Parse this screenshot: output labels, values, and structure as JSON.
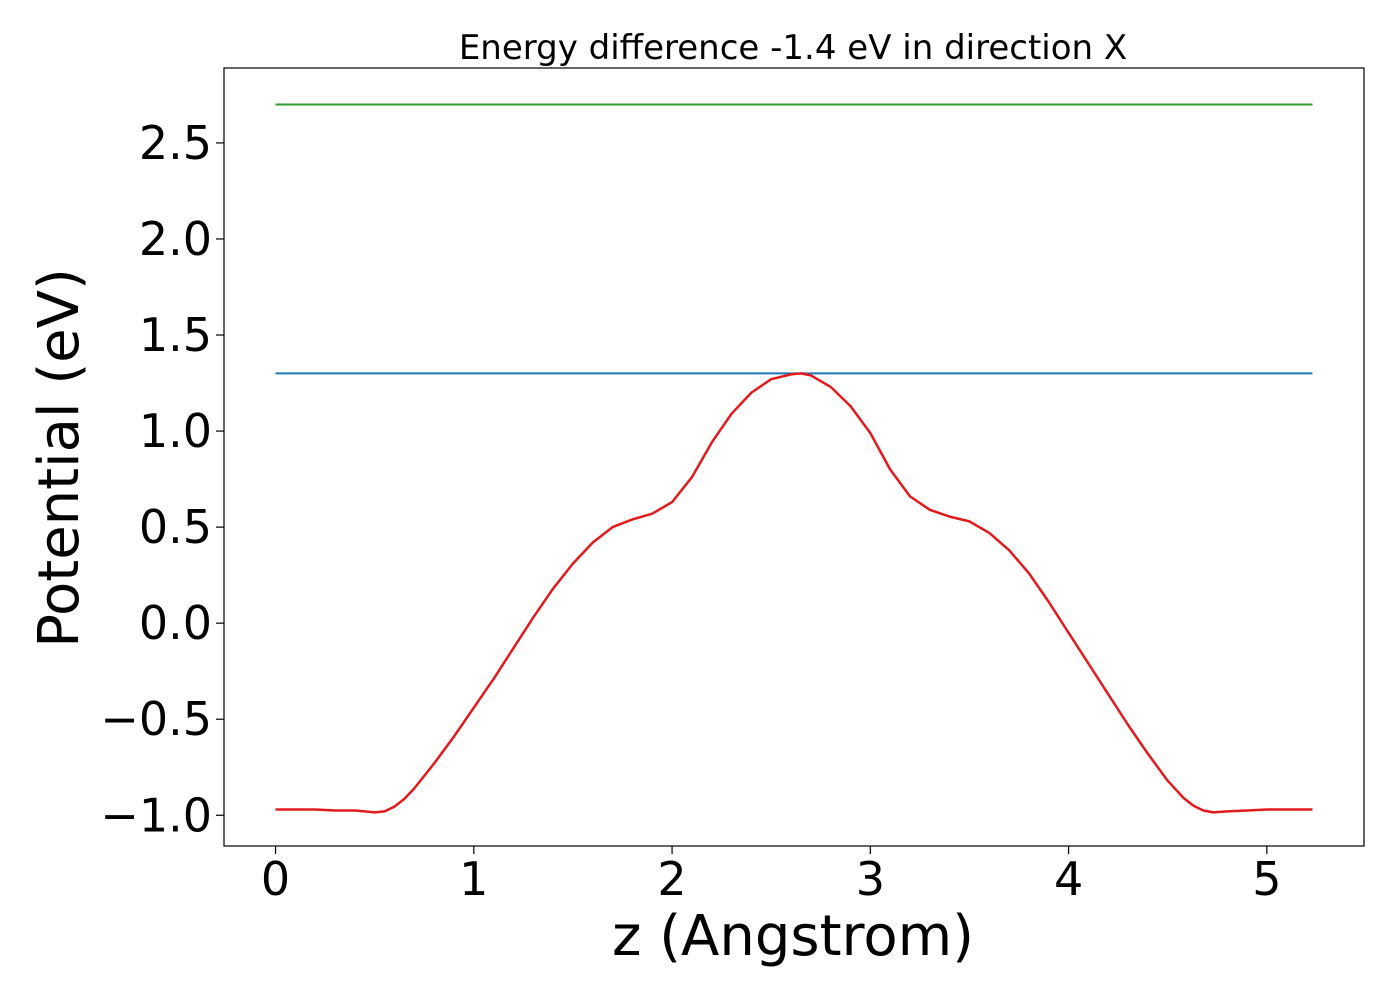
{
  "chart_data": {
    "type": "line",
    "title": "Energy difference -1.4 eV in direction X",
    "xlabel": "z (Angstrom)",
    "ylabel": "Potential (eV)",
    "xlim": [
      -0.26,
      5.49
    ],
    "ylim": [
      -1.16,
      2.89
    ],
    "xticks": [
      0,
      1,
      2,
      3,
      4,
      5
    ],
    "xtick_labels": [
      "0",
      "1",
      "2",
      "3",
      "4",
      "5"
    ],
    "yticks": [
      -1.0,
      -0.5,
      0.0,
      0.5,
      1.0,
      1.5,
      2.0,
      2.5
    ],
    "ytick_labels": [
      "−1.0",
      "−0.5",
      "0.0",
      "0.5",
      "1.0",
      "1.5",
      "2.0",
      "2.5"
    ],
    "grid": false,
    "series": [
      {
        "color": "#2ca02c",
        "x": [
          0,
          5.23
        ],
        "y": [
          2.7,
          2.7
        ]
      },
      {
        "color": "#1f77b4",
        "x": [
          0,
          5.23
        ],
        "y": [
          1.3,
          1.3
        ]
      },
      {
        "color": "#e31a1c",
        "x": [
          0,
          0.1,
          0.2,
          0.3,
          0.4,
          0.45,
          0.5,
          0.55,
          0.6,
          0.65,
          0.7,
          0.8,
          0.9,
          1.0,
          1.1,
          1.2,
          1.3,
          1.4,
          1.5,
          1.6,
          1.7,
          1.8,
          1.9,
          2.0,
          2.1,
          2.2,
          2.3,
          2.4,
          2.5,
          2.6,
          2.65,
          2.7,
          2.8,
          2.9,
          3.0,
          3.1,
          3.2,
          3.3,
          3.4,
          3.5,
          3.6,
          3.7,
          3.8,
          3.9,
          4.0,
          4.1,
          4.2,
          4.3,
          4.4,
          4.5,
          4.58,
          4.63,
          4.68,
          4.73,
          4.8,
          4.9,
          5.0,
          5.1,
          5.23
        ],
        "y": [
          -0.97,
          -0.97,
          -0.97,
          -0.975,
          -0.975,
          -0.98,
          -0.985,
          -0.98,
          -0.955,
          -0.915,
          -0.86,
          -0.73,
          -0.59,
          -0.44,
          -0.29,
          -0.13,
          0.03,
          0.18,
          0.31,
          0.42,
          0.5,
          0.54,
          0.57,
          0.63,
          0.76,
          0.94,
          1.09,
          1.2,
          1.27,
          1.295,
          1.3,
          1.29,
          1.23,
          1.13,
          0.99,
          0.8,
          0.66,
          0.59,
          0.555,
          0.53,
          0.47,
          0.38,
          0.26,
          0.11,
          -0.05,
          -0.21,
          -0.37,
          -0.53,
          -0.68,
          -0.82,
          -0.91,
          -0.95,
          -0.975,
          -0.985,
          -0.98,
          -0.975,
          -0.97,
          -0.97,
          -0.97
        ]
      }
    ]
  }
}
